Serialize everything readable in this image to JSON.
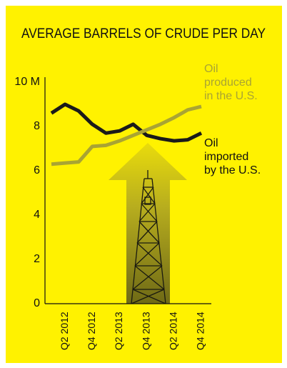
{
  "chart_data": {
    "type": "line",
    "title": "AVERAGE BARRELS OF CRUDE PER DAY",
    "categories": [
      null,
      "Q2 2012",
      null,
      "Q4 2012",
      null,
      "Q2 2013",
      null,
      "Q4 2013",
      null,
      "Q2 2014",
      null,
      "Q4 2014"
    ],
    "series": [
      {
        "color": "#1a1a1a",
        "values": [
          8.6,
          9.0,
          8.7,
          8.1,
          7.7,
          7.8,
          8.1,
          7.6,
          7.45,
          7.35,
          7.4,
          7.7
        ]
      },
      {
        "color": "#a9a433",
        "values": [
          6.3,
          6.35,
          6.4,
          7.1,
          7.15,
          7.35,
          7.6,
          7.85,
          8.1,
          8.4,
          8.75,
          8.9
        ]
      }
    ],
    "ylim": [
      0,
      10
    ],
    "yticks": [
      0,
      2,
      4,
      6,
      8,
      {
        "value": 10,
        "label": "10 M"
      }
    ],
    "grid": false,
    "annotations": [
      {
        "lines": [
          "Oil",
          "produced",
          "in the U.S."
        ],
        "color": "#a9a433"
      },
      {
        "lines": [
          "Oil",
          "imported",
          "by the U.S."
        ],
        "color": "#111111"
      }
    ]
  }
}
